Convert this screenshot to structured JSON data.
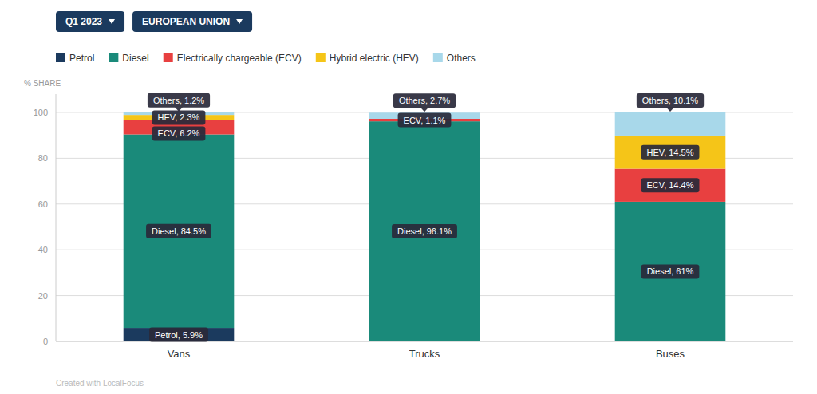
{
  "chart_data": {
    "type": "bar",
    "title": "Q1 2023",
    "subtitle": "EUROPEAN UNION",
    "ylabel": "% SHARE",
    "categories": [
      "Vans",
      "Trucks",
      "Buses"
    ],
    "series": [
      {
        "name": "Petrol",
        "color": "#1b3a5e",
        "values": [
          5.9,
          0.0,
          0.0
        ],
        "value_labels": [
          "Petrol, 5.9%",
          null,
          null
        ]
      },
      {
        "name": "Diesel",
        "color": "#1a8a7a",
        "values": [
          84.5,
          96.1,
          61.0
        ],
        "value_labels": [
          "Diesel, 84.5%",
          "Diesel, 96.1%",
          "Diesel, 61%"
        ]
      },
      {
        "name": "Electrically chargeable (ECV)",
        "color": "#e84040",
        "values": [
          6.2,
          1.1,
          14.4
        ],
        "value_labels": [
          "ECV, 6.2%",
          "ECV, 1.1%",
          "ECV, 14.4%"
        ]
      },
      {
        "name": "Hybrid electric (HEV)",
        "color": "#f5c518",
        "values": [
          2.3,
          0.0,
          14.5
        ],
        "value_labels": [
          "HEV, 2.3%",
          null,
          "HEV, 14.5%"
        ]
      },
      {
        "name": "Others",
        "color": "#a8d8ea",
        "values": [
          1.2,
          2.7,
          10.1
        ],
        "value_labels": [
          "Others, 1.2%",
          "Others, 2.7%",
          "Others, 10.1%"
        ]
      }
    ],
    "stacked": true,
    "data_labels": true,
    "ylim": [
      0,
      108
    ],
    "yticks": [
      0,
      20,
      40,
      60,
      80,
      100
    ],
    "grid": true,
    "legend": "top-left",
    "annotations": [
      "Created with LocalFocus"
    ]
  }
}
